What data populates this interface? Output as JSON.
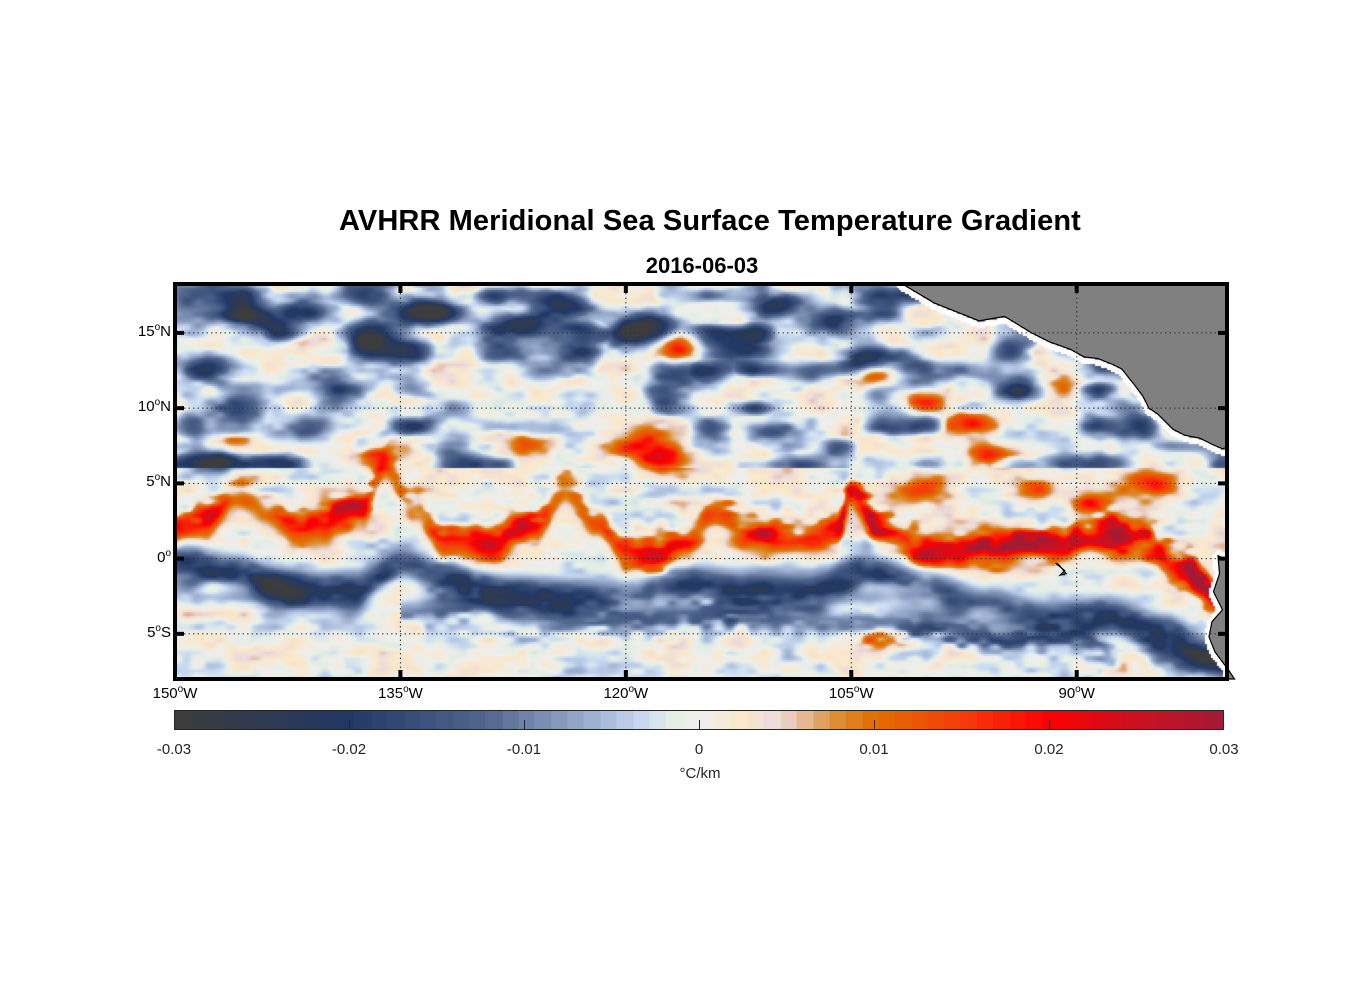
{
  "figure": {
    "title": "AVHRR Meridional Sea Surface Temperature Gradient",
    "subtitle": "2016-06-03"
  },
  "chart_data": {
    "type": "heatmap",
    "title": "AVHRR Meridional Sea Surface Temperature Gradient",
    "subtitle": "2016-06-03",
    "variable": "meridional SST gradient",
    "units": "°C/km",
    "extent": {
      "lon": [
        -150,
        -80
      ],
      "lat": [
        -8,
        18.25
      ]
    },
    "grid": "dotted",
    "land_color": "#808080",
    "x_ticks": [
      {
        "value": -150,
        "num": "150",
        "hem": "W"
      },
      {
        "value": -135,
        "num": "135",
        "hem": "W"
      },
      {
        "value": -120,
        "num": "120",
        "hem": "W"
      },
      {
        "value": -105,
        "num": "105",
        "hem": "W"
      },
      {
        "value": -90,
        "num": "90",
        "hem": "W"
      }
    ],
    "y_ticks": [
      {
        "value": 15,
        "num": "15",
        "hem": "N"
      },
      {
        "value": 10,
        "num": "10",
        "hem": "N"
      },
      {
        "value": 5,
        "num": "5",
        "hem": "N"
      },
      {
        "value": 0,
        "num": "0",
        "hem": ""
      },
      {
        "value": -5,
        "num": "5",
        "hem": "S"
      }
    ],
    "colorbar": {
      "location": "bottom",
      "label": "°C/km",
      "range": [
        -0.03,
        0.03
      ],
      "ticks": [
        {
          "value": -0.03,
          "label": "-0.03"
        },
        {
          "value": -0.02,
          "label": "-0.02"
        },
        {
          "value": -0.01,
          "label": "-0.01"
        },
        {
          "value": 0,
          "label": "0"
        },
        {
          "value": 0.01,
          "label": "0.01"
        },
        {
          "value": 0.02,
          "label": "0.02"
        },
        {
          "value": 0.03,
          "label": "0.03"
        }
      ],
      "stops": [
        {
          "value": -0.03,
          "color": "#3c3c3c"
        },
        {
          "value": -0.02,
          "color": "#213866"
        },
        {
          "value": -0.012,
          "color": "#53688f"
        },
        {
          "value": -0.006,
          "color": "#9fb2d3"
        },
        {
          "value": -0.003,
          "color": "#cbdcf3"
        },
        {
          "value": -0.0015,
          "color": "#e3eee3"
        },
        {
          "value": 0.0,
          "color": "#eeeeee"
        },
        {
          "value": 0.0025,
          "color": "#fbe8c8"
        },
        {
          "value": 0.0045,
          "color": "#ecdcde"
        },
        {
          "value": 0.008,
          "color": "#dc8c34"
        },
        {
          "value": 0.01,
          "color": "#e07000"
        },
        {
          "value": 0.015,
          "color": "#f53d0a"
        },
        {
          "value": 0.02,
          "color": "#fb0000"
        },
        {
          "value": 0.025,
          "color": "#cc1020"
        },
        {
          "value": 0.03,
          "color": "#a31a35"
        }
      ]
    },
    "features": {
      "warm_front_path": {
        "description": "positive-gradient band (northern edge of equatorial cold tongue, tropical instability waves)",
        "points": [
          [
            -150,
            2.0,
            0.02
          ],
          [
            -148,
            2.4,
            0.018
          ],
          [
            -146,
            4.5,
            0.012
          ],
          [
            -144,
            3.5,
            0.01
          ],
          [
            -142,
            2.2,
            0.014
          ],
          [
            -140,
            2.4,
            0.024
          ],
          [
            -137.5,
            3.5,
            0.026
          ],
          [
            -136,
            5.8,
            0.014
          ],
          [
            -134,
            3.3,
            0.01
          ],
          [
            -132,
            1.0,
            0.016
          ],
          [
            -129,
            0.8,
            0.02
          ],
          [
            -126,
            2.2,
            0.024
          ],
          [
            -124,
            4.5,
            0.016
          ],
          [
            -122,
            2.5,
            0.018
          ],
          [
            -120,
            0.4,
            0.02
          ],
          [
            -118,
            0.2,
            0.021
          ],
          [
            -116,
            1.2,
            0.02
          ],
          [
            -114,
            2.8,
            0.018
          ],
          [
            -112,
            1.7,
            0.02
          ],
          [
            -109,
            1.2,
            0.024
          ],
          [
            -106,
            1.6,
            0.02
          ],
          [
            -105,
            4.5,
            0.02
          ],
          [
            -103,
            1.8,
            0.027
          ],
          [
            -100,
            0.6,
            0.03
          ],
          [
            -96,
            0.2,
            0.03
          ],
          [
            -93,
            0.8,
            0.03
          ],
          [
            -91,
            0.8,
            0.026
          ],
          [
            -89,
            1.7,
            0.03
          ],
          [
            -86,
            1.4,
            0.028
          ],
          [
            -83,
            -0.6,
            0.03
          ],
          [
            -81,
            -2.4,
            0.03
          ]
        ]
      },
      "cold_front_path": {
        "description": "negative-gradient band (southern flank of cold tongue)",
        "points": [
          [
            -150,
            -0.2,
            -0.024
          ],
          [
            -146,
            -1.0,
            -0.022
          ],
          [
            -142,
            -2.3,
            -0.024
          ],
          [
            -138,
            -2.0,
            -0.022
          ],
          [
            -135,
            -0.4,
            -0.018
          ],
          [
            -132,
            -1.4,
            -0.024
          ],
          [
            -128,
            -2.4,
            -0.026
          ],
          [
            -124,
            -2.6,
            -0.024
          ],
          [
            -120,
            -2.6,
            -0.014
          ],
          [
            -116,
            -1.6,
            -0.02
          ],
          [
            -112,
            -2.0,
            -0.022
          ],
          [
            -108,
            -2.2,
            -0.024
          ],
          [
            -104,
            -0.8,
            -0.02
          ],
          [
            -100,
            -2.0,
            -0.018
          ],
          [
            -96,
            -3.0,
            -0.016
          ],
          [
            -92,
            -4.0,
            -0.02
          ],
          [
            -88,
            -3.8,
            -0.024
          ],
          [
            -84,
            -5.0,
            -0.024
          ],
          [
            -81,
            -6.5,
            -0.022
          ]
        ]
      },
      "secondary_cold_path": {
        "points": [
          [
            -135,
            -3.6,
            -0.012
          ],
          [
            -130,
            -3.0,
            -0.016
          ],
          [
            -126,
            -4.4,
            -0.01
          ],
          [
            -118,
            -4.0,
            -0.018
          ],
          [
            -112,
            -3.6,
            -0.02
          ],
          [
            -108,
            -4.2,
            -0.012
          ],
          [
            -100,
            -4.5,
            -0.02
          ],
          [
            -95,
            -5.5,
            -0.022
          ],
          [
            -90,
            -5.3,
            -0.018
          ],
          [
            -87,
            -6.6,
            -0.02
          ]
        ]
      },
      "blobs": [
        [
          -145,
          15.8,
          -0.018
        ],
        [
          -141,
          16.4,
          -0.022
        ],
        [
          -137,
          14.5,
          -0.022
        ],
        [
          -148,
          12.8,
          -0.022
        ],
        [
          -139,
          11.2,
          -0.022
        ],
        [
          -141,
          8.8,
          -0.018
        ],
        [
          -147,
          6.5,
          -0.016
        ],
        [
          -133,
          16.6,
          -0.026
        ],
        [
          -127,
          15.8,
          -0.024
        ],
        [
          -124,
          16.7,
          -0.022
        ],
        [
          -118.5,
          15.5,
          -0.026
        ],
        [
          -115,
          12.5,
          -0.024
        ],
        [
          -120,
          14.8,
          -0.02
        ],
        [
          -112,
          14.0,
          -0.022
        ],
        [
          -110,
          16.8,
          -0.024
        ],
        [
          -106,
          15.8,
          -0.022
        ],
        [
          -104,
          13.2,
          -0.026
        ],
        [
          -101,
          12.8,
          -0.014
        ],
        [
          -93,
          11.2,
          -0.02
        ],
        [
          -88,
          13.0,
          -0.018
        ],
        [
          -84,
          11.0,
          -0.014
        ],
        [
          -116.5,
          13.8,
          0.025
        ],
        [
          -117.5,
          6.6,
          0.024
        ],
        [
          -103,
          12.2,
          0.02
        ],
        [
          -100,
          10.6,
          0.018
        ],
        [
          -97,
          9.0,
          0.016
        ],
        [
          -95.5,
          6.8,
          0.016
        ],
        [
          -92,
          11.3,
          0.016
        ],
        [
          -85.5,
          13.5,
          0.012
        ],
        [
          -146,
          7.7,
          0.012
        ],
        [
          -137,
          7.0,
          0.014
        ],
        [
          -126.5,
          7.6,
          0.014
        ],
        [
          -118.8,
          8.1,
          0.012
        ],
        [
          -120,
          7.4,
          0.01
        ],
        [
          -126,
          16.4,
          0.014
        ],
        [
          -100,
          4.5,
          0.014
        ],
        [
          -85,
          4.9,
          0.016
        ],
        [
          -89,
          3.8,
          0.014
        ],
        [
          -93,
          4.6,
          0.012
        ],
        [
          -86.5,
          -6.6,
          0.016
        ],
        [
          -103,
          -5.3,
          0.012
        ],
        [
          -143,
          -1.6,
          -0.014
        ],
        [
          -110,
          8.6,
          -0.016
        ],
        [
          -96,
          1.6,
          0.012
        ]
      ],
      "land": {
        "description": "Central America (Mexico to Panama) and north-western South America",
        "central_america": [
          [
            -101.6,
            18.25
          ],
          [
            -99.5,
            17.0
          ],
          [
            -98.0,
            16.4
          ],
          [
            -96.5,
            15.8
          ],
          [
            -94.8,
            16.1
          ],
          [
            -93.0,
            15.0
          ],
          [
            -91.8,
            14.4
          ],
          [
            -90.4,
            13.9
          ],
          [
            -89.5,
            13.4
          ],
          [
            -88.6,
            13.3
          ],
          [
            -87.6,
            12.9
          ],
          [
            -87.0,
            12.6
          ],
          [
            -86.2,
            11.6
          ],
          [
            -85.6,
            10.8
          ],
          [
            -85.2,
            10.0
          ],
          [
            -84.6,
            9.6
          ],
          [
            -83.6,
            8.6
          ],
          [
            -82.8,
            8.2
          ],
          [
            -81.8,
            8.0
          ],
          [
            -81.0,
            7.6
          ],
          [
            -80.3,
            7.3
          ],
          [
            -80.0,
            7.4
          ],
          [
            -80.0,
            18.25
          ]
        ],
        "south_america": [
          [
            -80,
            -0.1
          ],
          [
            -80.6,
            0.2
          ],
          [
            -80.5,
            -1.0
          ],
          [
            -80.9,
            -2.2
          ],
          [
            -80.3,
            -3.4
          ],
          [
            -81.0,
            -4.2
          ],
          [
            -81.2,
            -5.2
          ],
          [
            -80.8,
            -6.2
          ],
          [
            -79.9,
            -7.4
          ],
          [
            -79.5,
            -8
          ],
          [
            -80,
            -8
          ]
        ],
        "galapagos": [
          [
            -91.4,
            -0.3
          ],
          [
            -90.8,
            -0.8
          ],
          [
            -91.1,
            -1.1
          ],
          [
            -90.7,
            -1.0
          ],
          [
            -91.2,
            -0.4
          ]
        ]
      }
    }
  }
}
